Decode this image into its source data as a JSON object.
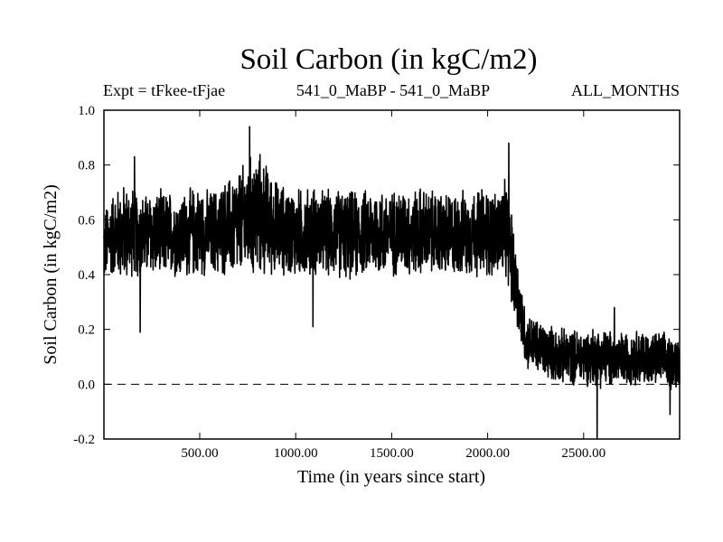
{
  "chart_data": {
    "type": "line",
    "title": "Soil Carbon (in kgC/m2)",
    "subtitle_left": "Expt = tFkee-tFjae",
    "subtitle_center": "541_0_MaBP - 541_0_MaBP",
    "subtitle_right": "ALL_MONTHS",
    "xlabel": "Time (in years since start)",
    "ylabel": "Soil Carbon (in kgC/m2)",
    "xlim": [
      1,
      3000
    ],
    "ylim": [
      -0.2,
      1.0
    ],
    "x_ticks": [
      {
        "value": 500,
        "label": "500.00"
      },
      {
        "value": 1000,
        "label": "1000.00"
      },
      {
        "value": 1500,
        "label": "1500.00"
      },
      {
        "value": 2000,
        "label": "2000.00"
      },
      {
        "value": 2500,
        "label": "2500.00"
      }
    ],
    "y_ticks": [
      {
        "value": -0.2,
        "label": "-0.2"
      },
      {
        "value": 0.0,
        "label": "0.0"
      },
      {
        "value": 0.2,
        "label": "0.2"
      },
      {
        "value": 0.4,
        "label": "0.4"
      },
      {
        "value": 0.6,
        "label": "0.6"
      },
      {
        "value": 0.8,
        "label": "0.8"
      },
      {
        "value": 1.0,
        "label": "1.0"
      }
    ],
    "zero_line": {
      "value": 0.0,
      "style": "dashed"
    },
    "grid": false,
    "series": [
      {
        "x": [
          1,
          50,
          100,
          150,
          200,
          250,
          300,
          350,
          400,
          450,
          500,
          550,
          600,
          650,
          700,
          750,
          800,
          850,
          900,
          950,
          1000,
          1050,
          1100,
          1150,
          1200,
          1250,
          1300,
          1350,
          1400,
          1450,
          1500,
          1550,
          1600,
          1650,
          1700,
          1750,
          1800,
          1850,
          1900,
          1950,
          2000,
          2050,
          2100,
          2150,
          2200,
          2250,
          2300,
          2350,
          2400,
          2450,
          2500,
          2550,
          2600,
          2650,
          2700,
          2750,
          2800,
          2850,
          2900,
          2950,
          3000
        ],
        "mean": [
          0.5,
          0.55,
          0.55,
          0.56,
          0.54,
          0.55,
          0.54,
          0.55,
          0.54,
          0.55,
          0.56,
          0.55,
          0.56,
          0.57,
          0.58,
          0.6,
          0.62,
          0.6,
          0.57,
          0.56,
          0.55,
          0.55,
          0.56,
          0.55,
          0.55,
          0.55,
          0.54,
          0.55,
          0.56,
          0.55,
          0.55,
          0.56,
          0.55,
          0.56,
          0.55,
          0.55,
          0.54,
          0.55,
          0.55,
          0.56,
          0.55,
          0.55,
          0.56,
          0.35,
          0.16,
          0.14,
          0.12,
          0.11,
          0.1,
          0.1,
          0.1,
          0.1,
          0.1,
          0.09,
          0.09,
          0.1,
          0.1,
          0.09,
          0.09,
          0.08,
          0.08
        ],
        "amplitude": [
          0.15,
          0.17,
          0.2,
          0.18,
          0.17,
          0.17,
          0.18,
          0.17,
          0.17,
          0.18,
          0.18,
          0.17,
          0.18,
          0.2,
          0.22,
          0.24,
          0.26,
          0.22,
          0.19,
          0.18,
          0.18,
          0.18,
          0.18,
          0.17,
          0.18,
          0.18,
          0.18,
          0.17,
          0.18,
          0.18,
          0.17,
          0.18,
          0.17,
          0.18,
          0.17,
          0.17,
          0.18,
          0.17,
          0.17,
          0.18,
          0.18,
          0.18,
          0.2,
          0.16,
          0.11,
          0.11,
          0.11,
          0.11,
          0.11,
          0.11,
          0.11,
          0.12,
          0.12,
          0.11,
          0.11,
          0.11,
          0.11,
          0.11,
          0.11,
          0.11,
          0.11
        ],
        "peaks": [
          {
            "x": 160,
            "y": 0.83
          },
          {
            "x": 190,
            "y": 0.19
          },
          {
            "x": 760,
            "y": 0.94
          },
          {
            "x": 1090,
            "y": 0.21
          },
          {
            "x": 2110,
            "y": 0.88
          },
          {
            "x": 2570,
            "y": -0.2
          },
          {
            "x": 2660,
            "y": 0.28
          },
          {
            "x": 2950,
            "y": -0.11
          }
        ],
        "color": "#000000"
      }
    ]
  }
}
